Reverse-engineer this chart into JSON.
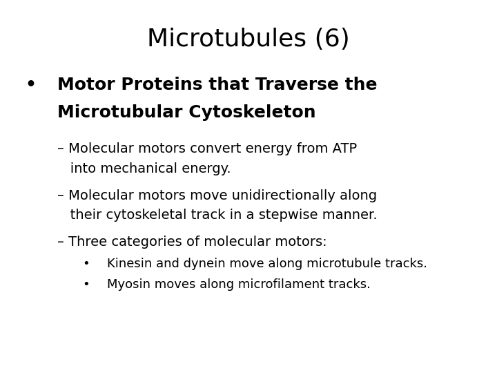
{
  "title": "Microtubules (6)",
  "title_fontsize": 26,
  "title_fontweight": "normal",
  "background_color": "#ffffff",
  "text_color": "#000000",
  "font_family": "DejaVu Sans",
  "bullet1_line1": "Motor Proteins that Traverse the",
  "bullet1_line2": "Microtubular Cytoskeleton",
  "bullet1_fontsize": 18,
  "sub_bullet1_line1": "– Molecular motors convert energy from ATP",
  "sub_bullet1_line2": "   into mechanical energy.",
  "sub_bullet2_line1": "– Molecular motors move unidirectionally along",
  "sub_bullet2_line2": "   their cytoskeletal track in a stepwise manner.",
  "sub_bullet3": "– Three categories of molecular motors:",
  "sub_bullet_fontsize": 14,
  "sub_sub_bullet1": "Kinesin and dynein move along microtubule tracks.",
  "sub_sub_bullet2": "Myosin moves along microfilament tracks.",
  "sub_sub_bullet_fontsize": 13
}
